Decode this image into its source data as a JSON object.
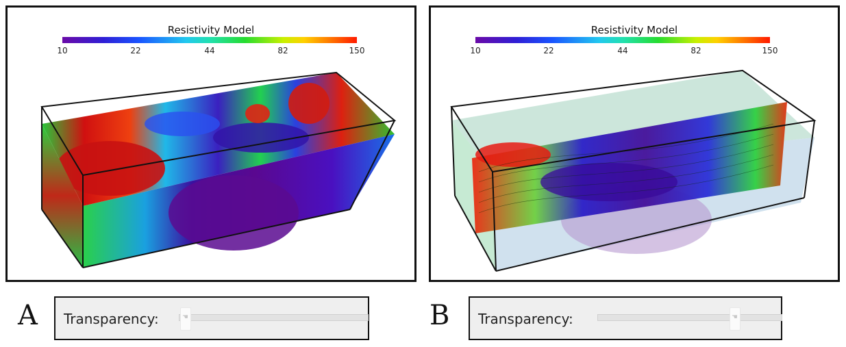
{
  "colorbar": {
    "title": "Resistivity Model",
    "ticks": [
      "10",
      "22",
      "44",
      "82",
      "150"
    ]
  },
  "panels": [
    {
      "letter": "A",
      "transparency_label": "Transparency:",
      "transparency_value": 0.0
    },
    {
      "letter": "B",
      "transparency_label": "Transparency:",
      "transparency_value": 0.75
    }
  ],
  "icons": {
    "slider_thumb": "hand-cursor-icon"
  },
  "colors": {
    "low": "#6a0aa8",
    "mid": "#26dc30",
    "high": "#ff1a00"
  }
}
